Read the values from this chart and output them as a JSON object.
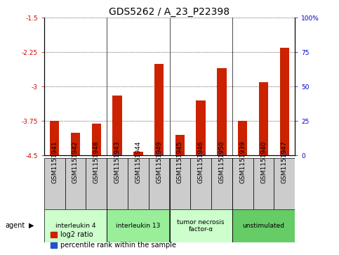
{
  "title": "GDS5262 / A_23_P22398",
  "samples": [
    "GSM1151941",
    "GSM1151942",
    "GSM1151948",
    "GSM1151943",
    "GSM1151944",
    "GSM1151949",
    "GSM1151945",
    "GSM1151946",
    "GSM1151950",
    "GSM1151939",
    "GSM1151940",
    "GSM1151947"
  ],
  "log2_ratios": [
    -3.75,
    -4.0,
    -3.8,
    -3.2,
    -4.42,
    -2.5,
    -4.05,
    -3.3,
    -2.6,
    -3.75,
    -2.9,
    -2.15
  ],
  "percentile_ranks": [
    3,
    4,
    4,
    5,
    2,
    6,
    4,
    5,
    6,
    3,
    4,
    7
  ],
  "ymin": -4.5,
  "ymax": -1.5,
  "yticks": [
    -1.5,
    -2.25,
    -3.0,
    -3.75,
    -4.5
  ],
  "ytick_labels": [
    "-1.5",
    "-2.25",
    "-3",
    "-3.75",
    "-4.5"
  ],
  "right_yticks": [
    0,
    25,
    50,
    75,
    100
  ],
  "right_ytick_labels": [
    "0",
    "25",
    "50",
    "75",
    "100%"
  ],
  "bar_bottom": -4.5,
  "agents": [
    {
      "label": "interleukin 4",
      "indices": [
        0,
        1,
        2
      ],
      "color": "#ccffcc"
    },
    {
      "label": "interleukin 13",
      "indices": [
        3,
        4,
        5
      ],
      "color": "#99ee99"
    },
    {
      "label": "tumor necrosis\nfactor-α",
      "indices": [
        6,
        7,
        8
      ],
      "color": "#ccffcc"
    },
    {
      "label": "unstimulated",
      "indices": [
        9,
        10,
        11
      ],
      "color": "#66cc66"
    }
  ],
  "bar_color_red": "#cc2200",
  "bar_color_blue": "#2255cc",
  "grid_color": "#000000",
  "background_color": "#ffffff",
  "ylabel_color_left": "#cc0000",
  "ylabel_color_right": "#0000cc",
  "tick_label_size": 6.5,
  "title_fontsize": 10,
  "legend_fontsize": 7,
  "sample_box_color": "#cccccc",
  "group_line_color": "#000000"
}
